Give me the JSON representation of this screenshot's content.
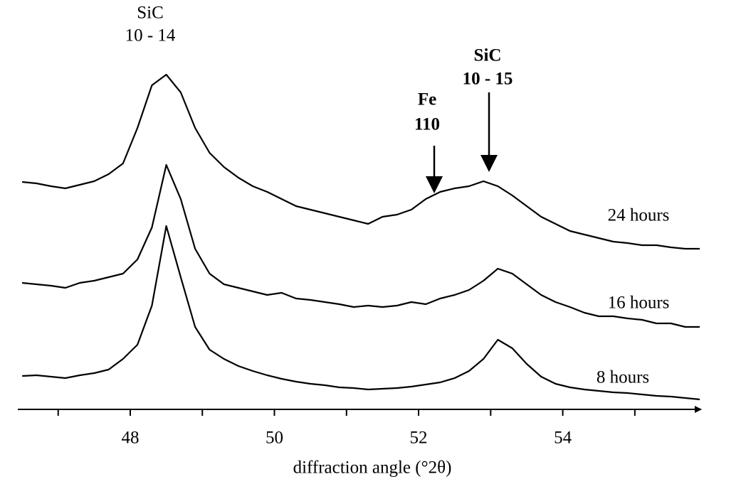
{
  "chart_data": {
    "type": "line",
    "xlabel": "diffraction angle (°2θ)",
    "x": [
      46.5,
      46.7,
      46.9,
      47.1,
      47.3,
      47.5,
      47.7,
      47.9,
      48.1,
      48.3,
      48.5,
      48.7,
      48.9,
      49.1,
      49.3,
      49.5,
      49.7,
      49.9,
      50.1,
      50.3,
      50.5,
      50.7,
      50.9,
      51.1,
      51.3,
      51.5,
      51.7,
      51.9,
      52.1,
      52.3,
      52.5,
      52.7,
      52.9,
      53.1,
      53.3,
      53.5,
      53.7,
      53.9,
      54.1,
      54.3,
      54.5,
      54.7,
      54.9,
      55.1,
      55.3,
      55.5,
      55.7,
      55.9
    ],
    "series": [
      {
        "name": "24 hours",
        "color": "#000000",
        "values": [
          64.0,
          63.6,
          62.8,
          62.2,
          63.2,
          64.2,
          66.2,
          69.2,
          79.2,
          91.2,
          94.2,
          89.2,
          79.2,
          72.2,
          68.2,
          65.2,
          62.8,
          61.2,
          59.2,
          57.2,
          56.2,
          55.2,
          54.2,
          53.2,
          52.2,
          54.2,
          54.8,
          56.2,
          59.2,
          61.2,
          62.2,
          62.8,
          64.2,
          62.8,
          60.2,
          57.2,
          54.2,
          52.2,
          50.2,
          49.2,
          48.2,
          47.2,
          46.8,
          46.2,
          46.2,
          45.6,
          45.2,
          45.2
        ]
      },
      {
        "name": "16 hours",
        "color": "#000000",
        "values": [
          35.6,
          35.2,
          34.8,
          34.2,
          35.6,
          36.2,
          37.2,
          38.2,
          42.2,
          51.2,
          68.8,
          59.2,
          45.2,
          38.2,
          35.2,
          34.2,
          33.2,
          32.2,
          32.8,
          31.2,
          30.8,
          30.2,
          29.6,
          28.8,
          29.2,
          28.8,
          29.2,
          30.2,
          29.6,
          31.2,
          32.2,
          33.6,
          36.2,
          39.6,
          38.2,
          35.2,
          32.2,
          30.2,
          28.8,
          27.2,
          26.2,
          26.2,
          25.6,
          25.2,
          24.2,
          24.2,
          23.2,
          23.2
        ]
      },
      {
        "name": "8 hours",
        "color": "#000000",
        "values": [
          9.4,
          9.6,
          9.2,
          8.8,
          9.6,
          10.2,
          11.2,
          14.2,
          18.2,
          29.2,
          51.6,
          37.2,
          23.2,
          16.8,
          14.2,
          12.2,
          10.8,
          9.6,
          8.6,
          7.8,
          7.2,
          6.8,
          6.2,
          6.0,
          5.6,
          5.8,
          6.0,
          6.4,
          7.0,
          7.6,
          8.8,
          10.8,
          14.2,
          19.6,
          17.2,
          12.8,
          9.2,
          7.2,
          6.2,
          5.6,
          5.2,
          4.8,
          4.6,
          4.2,
          3.8,
          3.6,
          3.2,
          2.8
        ]
      }
    ],
    "xlim": [
      46.44,
      55.92
    ],
    "xticks": [
      48,
      50,
      52,
      54
    ],
    "xminor_ticks": [
      47,
      49,
      51,
      53,
      55
    ],
    "ylim": [
      0,
      100
    ],
    "annotations": [
      {
        "lines": [
          "SiC",
          "10 - 14"
        ]
      },
      {
        "lines": [
          "Fe",
          "110"
        ]
      },
      {
        "lines": [
          "SiC",
          "10 - 15"
        ]
      }
    ]
  }
}
